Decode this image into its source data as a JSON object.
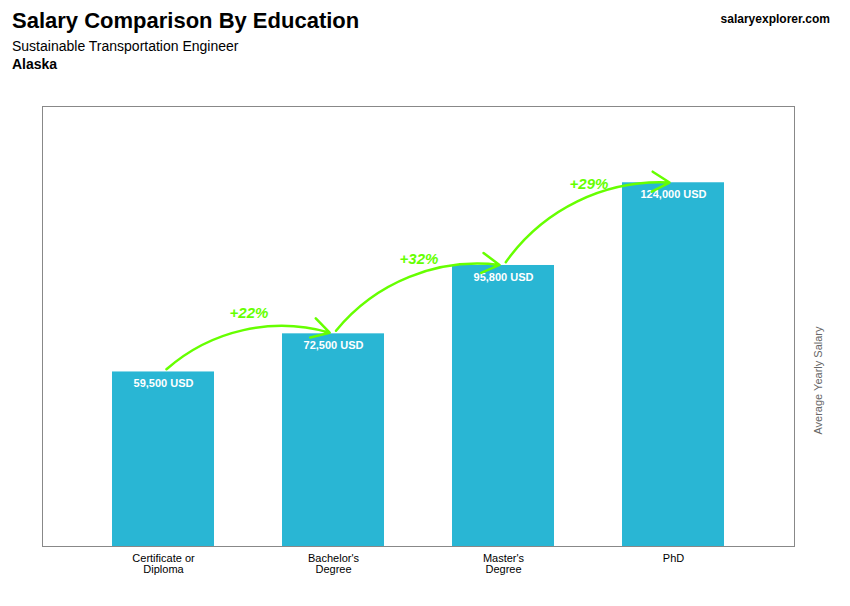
{
  "chart_data": {
    "type": "bar",
    "title": "Salary Comparison By Education",
    "subtitle": "Sustainable Transportation Engineer",
    "ylabel": "Average Yearly Salary",
    "categories": [
      "Certificate or\nDiploma",
      "Bachelor's\nDegree",
      "Master's\nDegree",
      "PhD"
    ],
    "values": [
      59500,
      72500,
      95800,
      124000
    ],
    "value_labels": [
      "59,500 USD",
      "72,500 USD",
      "95,800 USD",
      "124,000 USD"
    ],
    "data_labels": true,
    "color": "#29b6d4",
    "ylim": [
      0,
      150000
    ],
    "yticks": [],
    "tick_labels": "x",
    "grid": false,
    "annotations": [
      {
        "text": "Alaska"
      },
      {
        "text": "salary"
      },
      {
        "text": "explorer.com"
      },
      {
        "from": "Certificate or\nDiploma",
        "to": "Bachelor's\nDegree",
        "text": "+22%",
        "color": "#66ff00"
      },
      {
        "from": "Bachelor's\nDegree",
        "to": "Master's\nDegree",
        "text": "+32%",
        "color": "#66ff00"
      },
      {
        "from": "Master's\nDegree",
        "to": "PhD",
        "text": "+29%",
        "color": "#66ff00"
      }
    ]
  }
}
